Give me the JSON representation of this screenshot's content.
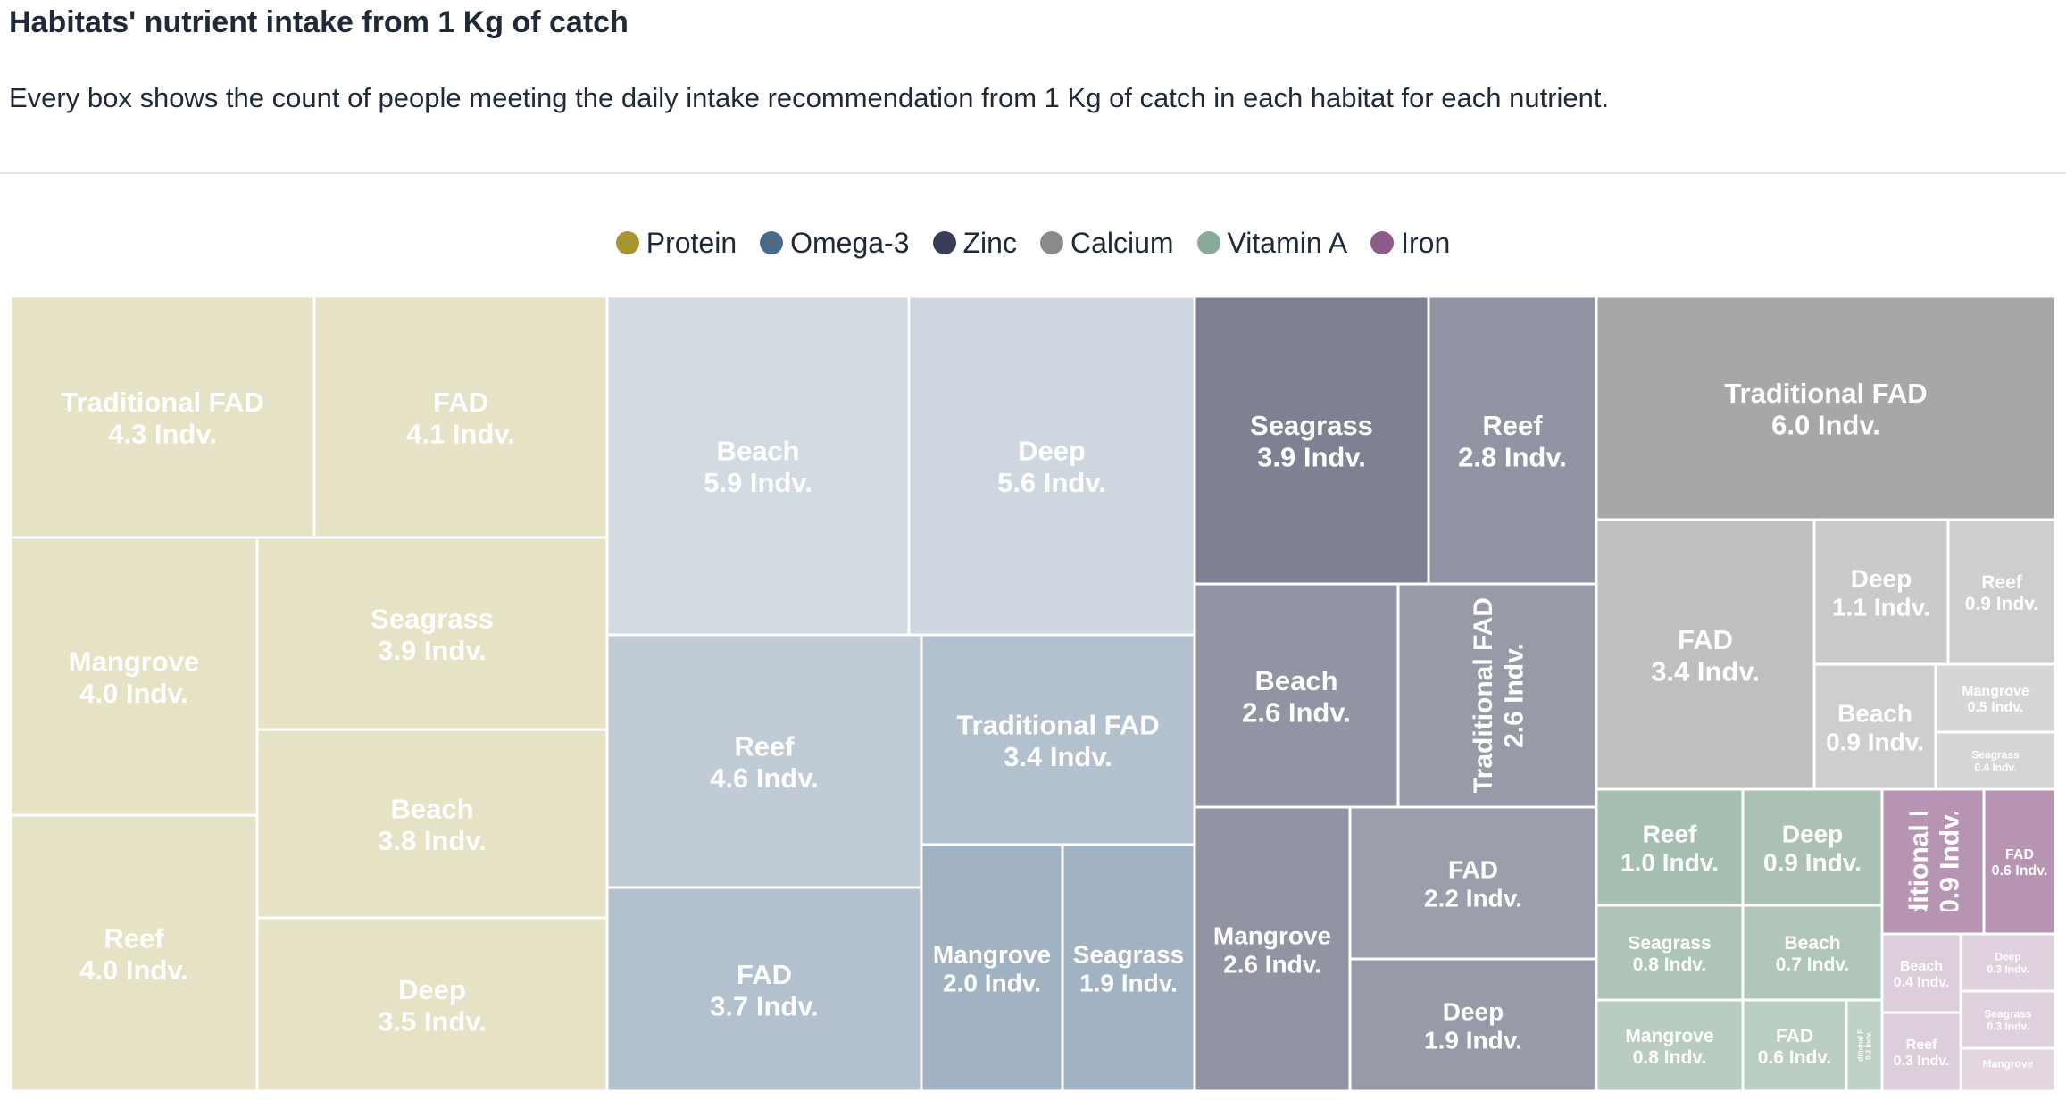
{
  "chart_data": {
    "type": "treemap",
    "title": "Habitats' nutrient intake from 1 Kg of catch",
    "subtitle": "Every box shows the count of people meeting the daily intake recommendation from 1 Kg of catch in each habitat for each nutrient.",
    "legend_position": "top-center",
    "unit_suffix": "Indv.",
    "series": [
      {
        "name": "Protein",
        "color": "#a7962f",
        "values": [
          {
            "label": "Traditional FAD",
            "value": 4.3
          },
          {
            "label": "FAD",
            "value": 4.1
          },
          {
            "label": "Mangrove",
            "value": 4.0
          },
          {
            "label": "Seagrass",
            "value": 3.9
          },
          {
            "label": "Beach",
            "value": 3.8
          },
          {
            "label": "Reef",
            "value": 4.0
          },
          {
            "label": "Deep",
            "value": 3.5
          }
        ]
      },
      {
        "name": "Omega-3",
        "color": "#4a6a8a",
        "values": [
          {
            "label": "Beach",
            "value": 5.9
          },
          {
            "label": "Deep",
            "value": 5.6
          },
          {
            "label": "Reef",
            "value": 4.6
          },
          {
            "label": "Traditional FAD",
            "value": 3.4
          },
          {
            "label": "FAD",
            "value": 3.7
          },
          {
            "label": "Mangrove",
            "value": 2.0
          },
          {
            "label": "Seagrass",
            "value": 1.9
          }
        ]
      },
      {
        "name": "Zinc",
        "color": "#393d57",
        "values": [
          {
            "label": "Seagrass",
            "value": 3.9
          },
          {
            "label": "Reef",
            "value": 2.8
          },
          {
            "label": "Beach",
            "value": 2.6
          },
          {
            "label": "Traditional FAD",
            "value": 2.6
          },
          {
            "label": "Mangrove",
            "value": 2.6
          },
          {
            "label": "FAD",
            "value": 2.2
          },
          {
            "label": "Deep",
            "value": 1.9
          }
        ]
      },
      {
        "name": "Calcium",
        "color": "#8a8a8a",
        "values": [
          {
            "label": "Traditional FAD",
            "value": 6.0
          },
          {
            "label": "FAD",
            "value": 3.4
          },
          {
            "label": "Deep",
            "value": 1.1
          },
          {
            "label": "Reef",
            "value": 0.9
          },
          {
            "label": "Beach",
            "value": 0.9
          },
          {
            "label": "Mangrove",
            "value": 0.5
          },
          {
            "label": "Seagrass",
            "value": 0.4
          }
        ]
      },
      {
        "name": "Vitamin A",
        "color": "#8aaa98",
        "values": [
          {
            "label": "Reef",
            "value": 1.0
          },
          {
            "label": "Deep",
            "value": 0.9
          },
          {
            "label": "Seagrass",
            "value": 0.8
          },
          {
            "label": "Beach",
            "value": 0.7
          },
          {
            "label": "Mangrove",
            "value": 0.8
          },
          {
            "label": "FAD",
            "value": 0.6
          },
          {
            "label": "Traditional FAD",
            "value": 0.2
          }
        ]
      },
      {
        "name": "Iron",
        "color": "#8e5a88",
        "values": [
          {
            "label": "Traditional FAD",
            "value": 0.9
          },
          {
            "label": "FAD",
            "value": 0.6
          },
          {
            "label": "Beach",
            "value": 0.4
          },
          {
            "label": "Deep",
            "value": 0.3
          },
          {
            "label": "Seagrass",
            "value": 0.3
          },
          {
            "label": "Reef",
            "value": 0.3
          },
          {
            "label": "Mangrove",
            "value": null
          }
        ]
      }
    ]
  }
}
